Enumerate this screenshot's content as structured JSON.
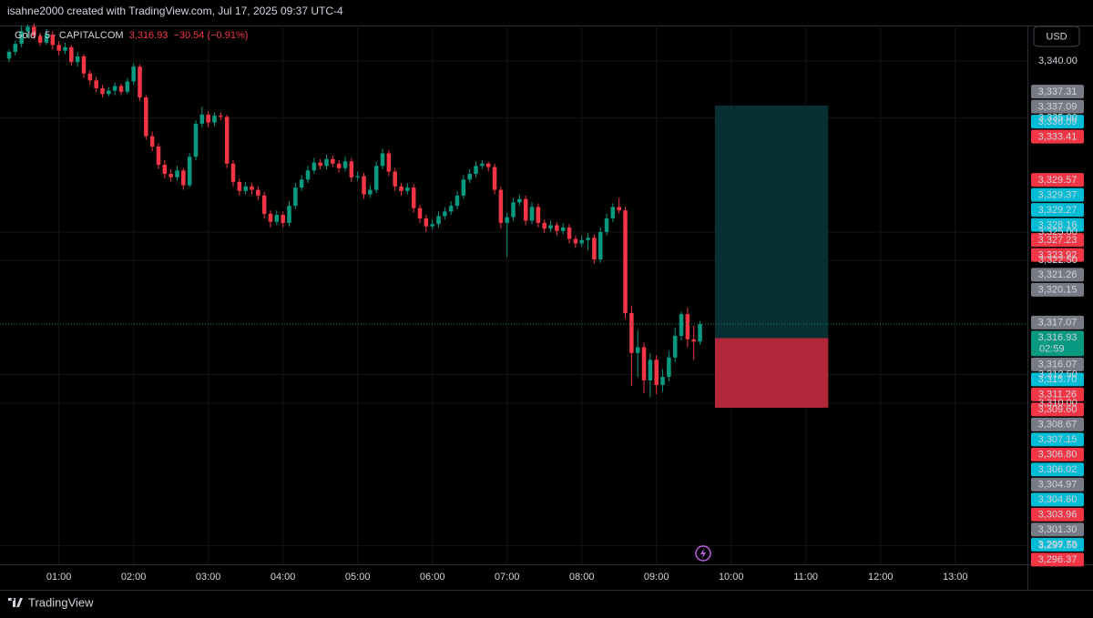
{
  "header": "isahne2000 created with TradingView.com, Jul 17, 2025 09:37 UTC-4",
  "footer": "TradingView",
  "chart_data": {
    "type": "candlestick",
    "title": "Gold · 5 · CAPITALCOM",
    "last_price": "3,316.93",
    "change": "−30.54 (−0.91%)",
    "currency": "USD",
    "countdown": "02:59",
    "up_color": "#089981",
    "down_color": "#f23645",
    "grid": true,
    "xlim": [
      -1.46,
      163.6
    ],
    "xticks": [
      {
        "value": 8,
        "label": "01:00"
      },
      {
        "value": 20,
        "label": "02:00"
      },
      {
        "value": 32,
        "label": "03:00"
      },
      {
        "value": 44,
        "label": "04:00"
      },
      {
        "value": 56,
        "label": "05:00"
      },
      {
        "value": 68,
        "label": "06:00"
      },
      {
        "value": 80,
        "label": "07:00"
      },
      {
        "value": 92,
        "label": "08:00"
      },
      {
        "value": 104,
        "label": "09:00"
      },
      {
        "value": 116,
        "label": "10:00"
      },
      {
        "value": 128,
        "label": "11:00"
      },
      {
        "value": 140,
        "label": "12:00"
      },
      {
        "value": 152,
        "label": "13:00"
      }
    ],
    "ylim": [
      3295.87,
      3343.11
    ],
    "yticks": [
      {
        "value": 3340,
        "label": "3,340.00"
      },
      {
        "value": 3335,
        "label": "3,335.00"
      },
      {
        "value": 3325,
        "label": "3,325.00"
      },
      {
        "value": 3322.5,
        "label": "3,322.50"
      },
      {
        "value": 3312.5,
        "label": "3,312.50"
      },
      {
        "value": 3310,
        "label": "3,310.00"
      },
      {
        "value": 3297.5,
        "label": "3,297.50"
      }
    ],
    "candles": [
      [
        3340.2,
        3341.0,
        3339.9,
        3340.8
      ],
      [
        3340.8,
        3341.8,
        3340.5,
        3341.5
      ],
      [
        3341.5,
        3343.1,
        3341.2,
        3342.6
      ],
      [
        3342.6,
        3343.2,
        3342.0,
        3343.0
      ],
      [
        3343.0,
        3343.3,
        3341.9,
        3342.2
      ],
      [
        3342.2,
        3342.5,
        3341.3,
        3341.6
      ],
      [
        3341.6,
        3342.8,
        3341.4,
        3342.3
      ],
      [
        3342.3,
        3342.6,
        3341.0,
        3341.4
      ],
      [
        3341.4,
        3341.7,
        3340.5,
        3340.9
      ],
      [
        3340.9,
        3341.6,
        3340.6,
        3341.2
      ],
      [
        3341.2,
        3341.4,
        3339.6,
        3339.9
      ],
      [
        3339.9,
        3340.8,
        3339.5,
        3340.4
      ],
      [
        3340.4,
        3340.6,
        3338.5,
        3338.9
      ],
      [
        3338.9,
        3339.2,
        3337.9,
        3338.3
      ],
      [
        3338.3,
        3338.6,
        3337.3,
        3337.6
      ],
      [
        3337.6,
        3337.9,
        3336.8,
        3337.1
      ],
      [
        3337.1,
        3337.7,
        3336.9,
        3337.4
      ],
      [
        3337.4,
        3338.1,
        3337.0,
        3337.8
      ],
      [
        3337.8,
        3338.0,
        3337.0,
        3337.3
      ],
      [
        3337.3,
        3338.5,
        3337.1,
        3338.2
      ],
      [
        3338.2,
        3339.8,
        3337.9,
        3339.5
      ],
      [
        3339.5,
        3339.7,
        3336.5,
        3336.8
      ],
      [
        3336.8,
        3337.0,
        3333.1,
        3333.4
      ],
      [
        3333.4,
        3333.8,
        3332.1,
        3332.5
      ],
      [
        3332.5,
        3332.8,
        3330.5,
        3330.9
      ],
      [
        3330.9,
        3331.3,
        3329.7,
        3330.1
      ],
      [
        3330.1,
        3330.5,
        3329.4,
        3329.8
      ],
      [
        3329.8,
        3330.8,
        3329.5,
        3330.4
      ],
      [
        3330.4,
        3330.6,
        3328.7,
        3329.1
      ],
      [
        3329.1,
        3331.9,
        3328.9,
        3331.6
      ],
      [
        3331.6,
        3334.8,
        3331.3,
        3334.5
      ],
      [
        3334.5,
        3336.0,
        3334.2,
        3335.3
      ],
      [
        3335.3,
        3335.6,
        3334.2,
        3334.6
      ],
      [
        3334.6,
        3335.5,
        3334.3,
        3335.2
      ],
      [
        3335.2,
        3335.5,
        3334.8,
        3335.1
      ],
      [
        3335.1,
        3335.3,
        3330.6,
        3331.0
      ],
      [
        3331.0,
        3331.3,
        3329.0,
        3329.4
      ],
      [
        3329.4,
        3329.7,
        3328.2,
        3328.6
      ],
      [
        3328.6,
        3329.4,
        3328.3,
        3329.0
      ],
      [
        3329.0,
        3329.3,
        3328.3,
        3328.7
      ],
      [
        3328.7,
        3329.0,
        3327.8,
        3328.2
      ],
      [
        3328.2,
        3328.5,
        3326.2,
        3326.6
      ],
      [
        3326.6,
        3326.9,
        3325.4,
        3325.9
      ],
      [
        3325.9,
        3326.9,
        3325.6,
        3326.5
      ],
      [
        3326.5,
        3326.8,
        3325.4,
        3325.8
      ],
      [
        3325.8,
        3327.7,
        3325.5,
        3327.3
      ],
      [
        3327.3,
        3329.3,
        3327.0,
        3328.9
      ],
      [
        3328.9,
        3330.0,
        3328.6,
        3329.6
      ],
      [
        3329.6,
        3330.8,
        3329.3,
        3330.4
      ],
      [
        3330.4,
        3331.5,
        3330.1,
        3331.1
      ],
      [
        3331.1,
        3331.4,
        3330.5,
        3330.8
      ],
      [
        3330.8,
        3331.8,
        3330.5,
        3331.4
      ],
      [
        3331.4,
        3331.7,
        3330.7,
        3331.0
      ],
      [
        3331.0,
        3331.3,
        3330.2,
        3330.6
      ],
      [
        3330.6,
        3331.6,
        3330.3,
        3331.2
      ],
      [
        3331.2,
        3331.5,
        3329.4,
        3329.8
      ],
      [
        3329.8,
        3330.3,
        3329.5,
        3329.9
      ],
      [
        3329.9,
        3330.2,
        3327.9,
        3328.3
      ],
      [
        3328.3,
        3329.1,
        3328.0,
        3328.7
      ],
      [
        3328.7,
        3331.2,
        3328.4,
        3330.8
      ],
      [
        3330.8,
        3332.3,
        3330.5,
        3331.9
      ],
      [
        3331.9,
        3332.2,
        3329.9,
        3330.3
      ],
      [
        3330.3,
        3330.6,
        3328.6,
        3329.0
      ],
      [
        3329.0,
        3329.3,
        3328.2,
        3328.6
      ],
      [
        3328.6,
        3329.3,
        3328.3,
        3328.9
      ],
      [
        3328.9,
        3329.2,
        3326.7,
        3327.1
      ],
      [
        3327.1,
        3327.4,
        3325.8,
        3326.2
      ],
      [
        3326.2,
        3326.5,
        3325.0,
        3325.5
      ],
      [
        3325.5,
        3326.1,
        3325.2,
        3325.7
      ],
      [
        3325.7,
        3326.8,
        3325.4,
        3326.4
      ],
      [
        3326.4,
        3327.2,
        3326.1,
        3326.8
      ],
      [
        3326.8,
        3327.7,
        3326.5,
        3327.3
      ],
      [
        3327.3,
        3328.6,
        3327.0,
        3328.2
      ],
      [
        3328.2,
        3330.0,
        3327.9,
        3329.6
      ],
      [
        3329.6,
        3330.5,
        3329.3,
        3330.1
      ],
      [
        3330.1,
        3331.2,
        3329.8,
        3330.8
      ],
      [
        3330.8,
        3331.3,
        3330.5,
        3331.0
      ],
      [
        3331.0,
        3331.2,
        3330.3,
        3330.7
      ],
      [
        3330.7,
        3331.0,
        3328.3,
        3328.7
      ],
      [
        3328.7,
        3329.0,
        3325.3,
        3325.8
      ],
      [
        3325.8,
        3326.7,
        3322.8,
        3326.3
      ],
      [
        3326.3,
        3328.0,
        3326.0,
        3327.6
      ],
      [
        3327.6,
        3328.3,
        3327.3,
        3327.9
      ],
      [
        3327.9,
        3328.2,
        3325.6,
        3326.0
      ],
      [
        3326.0,
        3327.6,
        3325.7,
        3327.2
      ],
      [
        3327.2,
        3327.5,
        3325.4,
        3325.8
      ],
      [
        3325.8,
        3326.1,
        3324.9,
        3325.3
      ],
      [
        3325.3,
        3326.0,
        3325.0,
        3325.6
      ],
      [
        3325.6,
        3325.9,
        3324.7,
        3325.1
      ],
      [
        3325.1,
        3325.8,
        3324.8,
        3325.4
      ],
      [
        3325.4,
        3325.7,
        3324.0,
        3324.4
      ],
      [
        3324.4,
        3324.7,
        3323.6,
        3324.0
      ],
      [
        3324.0,
        3324.7,
        3323.7,
        3324.3
      ],
      [
        3324.3,
        3324.9,
        3323.4,
        3324.5
      ],
      [
        3324.5,
        3324.8,
        3322.2,
        3322.6
      ],
      [
        3322.6,
        3325.4,
        3322.3,
        3325.0
      ],
      [
        3325.0,
        3326.6,
        3324.7,
        3326.2
      ],
      [
        3326.2,
        3327.5,
        3325.9,
        3327.2
      ],
      [
        3327.2,
        3328.0,
        3326.6,
        3326.9
      ],
      [
        3326.9,
        3327.2,
        3317.4,
        3317.9
      ],
      [
        3317.9,
        3318.5,
        3311.5,
        3314.4
      ],
      [
        3314.4,
        3316.4,
        3312.3,
        3314.9
      ],
      [
        3314.9,
        3315.3,
        3310.9,
        3312.0
      ],
      [
        3312.0,
        3314.4,
        3310.5,
        3313.8
      ],
      [
        3313.8,
        3314.2,
        3310.8,
        3311.6
      ],
      [
        3311.6,
        3313.0,
        3311.0,
        3312.3
      ],
      [
        3312.3,
        3314.6,
        3311.9,
        3314.0
      ],
      [
        3314.0,
        3316.6,
        3313.6,
        3315.9
      ],
      [
        3315.9,
        3318.0,
        3315.5,
        3317.8
      ],
      [
        3317.8,
        3318.4,
        3314.9,
        3315.6
      ],
      [
        3315.6,
        3316.8,
        3313.8,
        3315.4
      ],
      [
        3315.4,
        3317.2,
        3315.1,
        3316.93
      ]
    ],
    "position": {
      "start": 113.4,
      "end": 131.6,
      "entry": 3315.7,
      "target": 3336.09,
      "stop": 3309.6
    },
    "price_tags": [
      {
        "value": 3337.31,
        "label": "3,337.31",
        "color": "#787b86"
      },
      {
        "value": 3337.09,
        "label": "3,337.09",
        "color": "#787b86"
      },
      {
        "value": 3336.09,
        "label": "3,336.09",
        "color": "#00bcd4"
      },
      {
        "value": 3333.41,
        "label": "3,333.41",
        "color": "#f23645"
      },
      {
        "value": 3329.57,
        "label": "3,329.57",
        "color": "#f23645"
      },
      {
        "value": 3329.37,
        "label": "3,329.37",
        "color": "#00bcd4"
      },
      {
        "value": 3329.27,
        "label": "3,329.27",
        "color": "#00bcd4"
      },
      {
        "value": 3328.16,
        "label": "3,328.16",
        "color": "#00bcd4"
      },
      {
        "value": 3327.23,
        "label": "3,327.23",
        "color": "#f23645"
      },
      {
        "value": 3323.92,
        "label": "3,323.92",
        "color": "#f23645"
      },
      {
        "value": 3321.26,
        "label": "3,321.26",
        "color": "#787b86"
      },
      {
        "value": 3320.15,
        "label": "3,320.15",
        "color": "#787b86"
      },
      {
        "value": 3317.07,
        "label": "3,317.07",
        "color": "#787b86"
      },
      {
        "value": 3316.93,
        "label": "3,316.93",
        "color": "#089981"
      },
      {
        "value": 3316.07,
        "label": "3,316.07",
        "color": "#787b86"
      },
      {
        "value": 3315.7,
        "label": "3,315.70",
        "color": "#00bcd4"
      },
      {
        "value": 3311.26,
        "label": "3,311.26",
        "color": "#f23645"
      },
      {
        "value": 3309.6,
        "label": "3,309.60",
        "color": "#f23645"
      },
      {
        "value": 3308.67,
        "label": "3,308.67",
        "color": "#787b86"
      },
      {
        "value": 3307.15,
        "label": "3,307.15",
        "color": "#00bcd4"
      },
      {
        "value": 3306.8,
        "label": "3,306.80",
        "color": "#f23645"
      },
      {
        "value": 3306.02,
        "label": "3,306.02",
        "color": "#00bcd4"
      },
      {
        "value": 3304.97,
        "label": "3,304.97",
        "color": "#787b86"
      },
      {
        "value": 3304.6,
        "label": "3,304.60",
        "color": "#00bcd4"
      },
      {
        "value": 3303.96,
        "label": "3,303.96",
        "color": "#f23645"
      },
      {
        "value": 3301.3,
        "label": "3,301.30",
        "color": "#787b86"
      },
      {
        "value": 3299.78,
        "label": "3,299.78",
        "color": "#00bcd4"
      },
      {
        "value": 3296.37,
        "label": "3,296.37",
        "color": "#f23645"
      }
    ]
  }
}
